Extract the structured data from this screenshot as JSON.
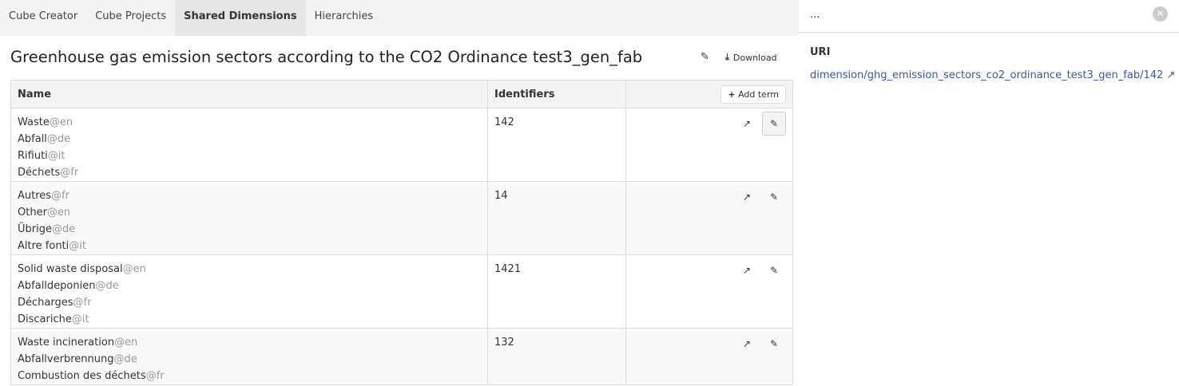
{
  "nav": {
    "tabs": [
      {
        "label": "Cube Creator"
      },
      {
        "label": "Cube Projects"
      },
      {
        "label": "Shared Dimensions",
        "active": true
      },
      {
        "label": "Hierarchies"
      }
    ]
  },
  "title": "Greenhouse gas emission sectors according to the CO2 Ordinance test3_gen_fab",
  "download_label": "Download",
  "table": {
    "headers": [
      "Name",
      "Identifiers"
    ],
    "add_term_label": "Add term",
    "rows": [
      {
        "names": [
          [
            "Waste",
            "@en"
          ],
          [
            "Abfall",
            "@de"
          ],
          [
            "Rifiuti",
            "@it"
          ],
          [
            "Déchets",
            "@fr"
          ]
        ],
        "identifier": "142",
        "selected": true
      },
      {
        "names": [
          [
            "Autres",
            "@fr"
          ],
          [
            "Other",
            "@en"
          ],
          [
            "Übrige",
            "@de"
          ],
          [
            "Altre fonti",
            "@it"
          ]
        ],
        "identifier": "14"
      },
      {
        "names": [
          [
            "Solid waste disposal",
            "@en"
          ],
          [
            "Abfalldeponien",
            "@de"
          ],
          [
            "Décharges",
            "@fr"
          ],
          [
            "Discariche",
            "@it"
          ]
        ],
        "identifier": "1421"
      },
      {
        "names": [
          [
            "Waste incineration",
            "@en"
          ],
          [
            "Abfallverbrennung",
            "@de"
          ],
          [
            "Combustion des déchets",
            "@fr"
          ]
        ],
        "identifier": "132"
      }
    ]
  },
  "panel": {
    "title": "...",
    "uri_label": "URI",
    "uri": "dimension/ghg_emission_sectors_co2_ordinance_test3_gen_fab/142"
  },
  "colors": {
    "link": "#3355bb",
    "active_tab": "#e6e6e6"
  }
}
